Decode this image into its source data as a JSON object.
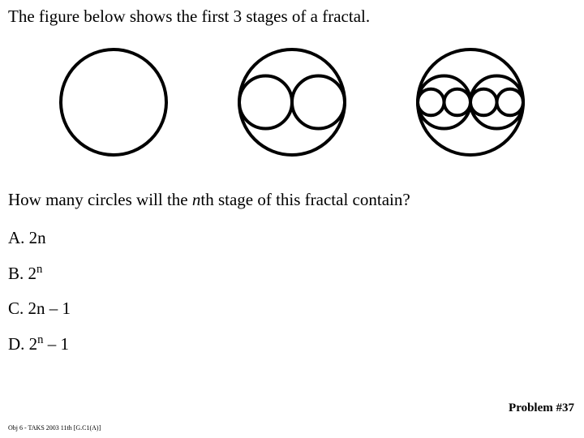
{
  "prompt": "The figure below shows the first 3 stages of a fractal.",
  "question_pre": "How many circles will the ",
  "question_var": "n",
  "question_post": "th stage of this fractal contain?",
  "answers": {
    "a": {
      "label": "A. ",
      "expr": "2n"
    },
    "b": {
      "label": "B. ",
      "expr_base": "2",
      "expr_sup": "n"
    },
    "c": {
      "label": "C. ",
      "expr": "2n – 1"
    },
    "d": {
      "label": "D. ",
      "expr_base": "2",
      "expr_sup": "n",
      "expr_tail": " – 1"
    }
  },
  "problem_number": "Problem #37",
  "footer": "Obj 6 - TAKS 2003 11th [G.C1(A)]",
  "figure": {
    "type": "fractal-circles",
    "stroke": "#000000",
    "stroke_width": 4,
    "outer_radius": 65,
    "svg_size": 150,
    "stages": [
      1,
      2,
      3
    ]
  }
}
